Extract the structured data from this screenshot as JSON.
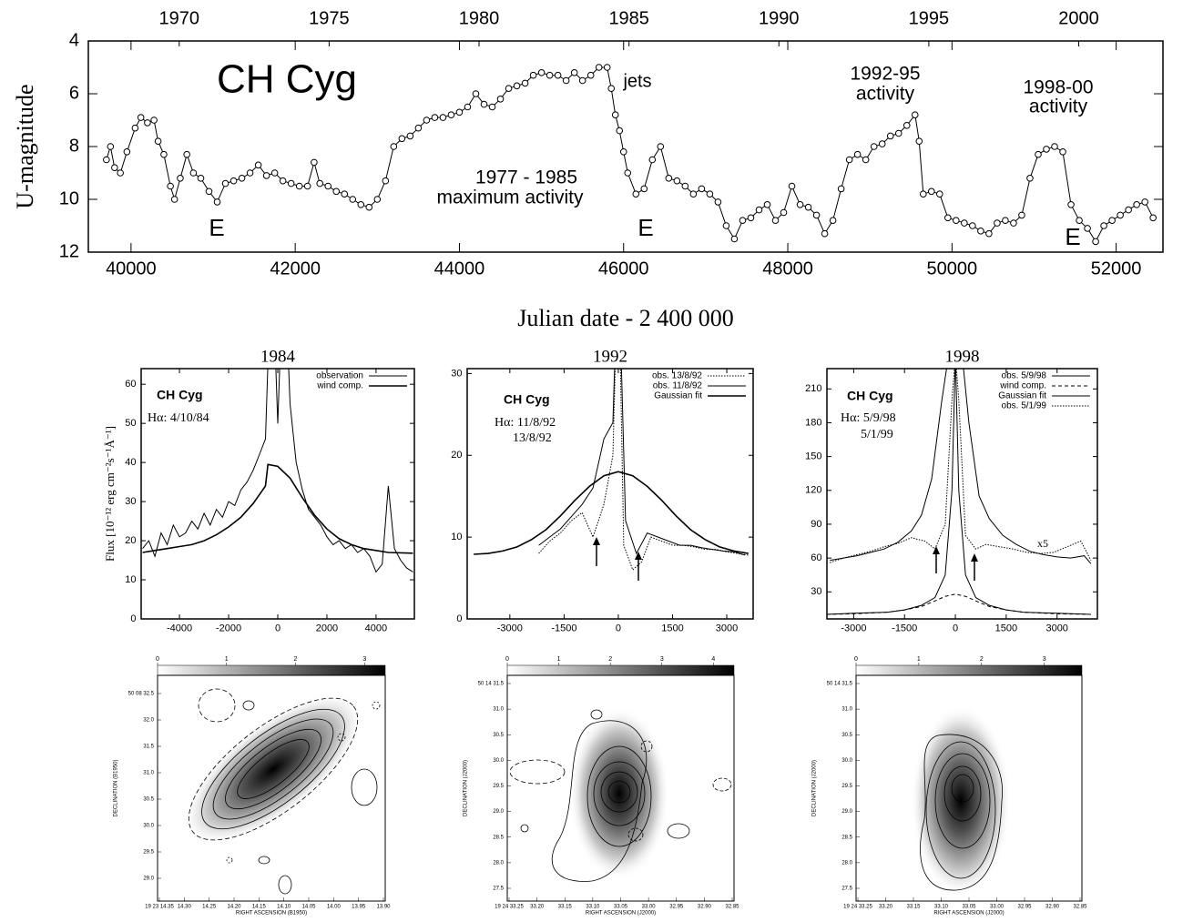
{
  "chart_data": [
    {
      "type": "scatter",
      "xlabel": "Julian date - 2 400 000",
      "ylabel": "U-magnitude",
      "color": "#000000",
      "annotations": [
        "CH Cyg",
        "jets",
        "1992-95",
        "activity",
        "1998-00",
        "activity",
        "1977 - 1985",
        "maximum  activity",
        "E",
        "E",
        "E"
      ],
      "xlim": [
        39480,
        52570
      ],
      "ylim": [
        12,
        4
      ],
      "xticks": [
        40000,
        42000,
        44000,
        46000,
        48000,
        50000,
        52000
      ],
      "yticks": [
        4,
        6,
        8,
        10,
        12
      ],
      "x2ticks": [
        {
          "value": 40587,
          "label": "1970"
        },
        {
          "value": 42413,
          "label": "1975"
        },
        {
          "value": 44239,
          "label": "1980"
        },
        {
          "value": 46066,
          "label": "1985"
        },
        {
          "value": 47892,
          "label": "1990"
        },
        {
          "value": 49718,
          "label": "1995"
        },
        {
          "value": 51544,
          "label": "2000"
        }
      ],
      "x": [
        39700,
        39750,
        39800,
        39870,
        39950,
        40050,
        40120,
        40200,
        40280,
        40330,
        40400,
        40480,
        40530,
        40600,
        40680,
        40760,
        40850,
        40950,
        41050,
        41150,
        41250,
        41350,
        41450,
        41550,
        41650,
        41750,
        41850,
        41950,
        42050,
        42150,
        42230,
        42300,
        42400,
        42500,
        42600,
        42700,
        42800,
        42900,
        43000,
        43100,
        43200,
        43300,
        43400,
        43500,
        43600,
        43700,
        43800,
        43900,
        44000,
        44100,
        44200,
        44300,
        44400,
        44500,
        44600,
        44700,
        44800,
        44900,
        45000,
        45100,
        45200,
        45300,
        45400,
        45500,
        45600,
        45700,
        45800,
        45850,
        45900,
        45950,
        46000,
        46050,
        46150,
        46250,
        46350,
        46450,
        46550,
        46650,
        46750,
        46850,
        46950,
        47050,
        47150,
        47250,
        47350,
        47450,
        47550,
        47650,
        47750,
        47850,
        47950,
        48050,
        48150,
        48250,
        48350,
        48450,
        48550,
        48650,
        48750,
        48850,
        48950,
        49050,
        49150,
        49250,
        49350,
        49450,
        49550,
        49600,
        49650,
        49750,
        49850,
        49950,
        50050,
        50150,
        50250,
        50350,
        50450,
        50550,
        50650,
        50750,
        50850,
        50950,
        51050,
        51150,
        51250,
        51350,
        51450,
        51550,
        51650,
        51750,
        51850,
        51950,
        52050,
        52150,
        52250,
        52350,
        52450
      ],
      "values": [
        8.5,
        8.0,
        8.8,
        9.0,
        8.2,
        7.3,
        6.9,
        7.1,
        7.0,
        7.8,
        8.3,
        9.5,
        10.0,
        9.2,
        8.3,
        9.0,
        9.2,
        9.7,
        10.1,
        9.4,
        9.3,
        9.2,
        9.0,
        8.7,
        9.1,
        9.0,
        9.3,
        9.4,
        9.5,
        9.5,
        8.6,
        9.4,
        9.5,
        9.7,
        9.8,
        10.0,
        10.2,
        10.3,
        10.0,
        9.3,
        8.0,
        7.7,
        7.6,
        7.3,
        7.0,
        6.9,
        6.9,
        6.8,
        6.7,
        6.5,
        6.0,
        6.4,
        6.5,
        6.2,
        5.8,
        5.7,
        5.6,
        5.3,
        5.2,
        5.3,
        5.3,
        5.5,
        5.2,
        5.5,
        5.3,
        5.0,
        5.0,
        5.8,
        6.8,
        7.4,
        8.2,
        9.0,
        9.8,
        9.6,
        8.5,
        8.0,
        9.2,
        9.3,
        9.5,
        9.8,
        9.6,
        9.8,
        10.1,
        11.0,
        11.5,
        10.8,
        10.7,
        10.4,
        10.2,
        10.8,
        10.5,
        9.5,
        10.2,
        10.3,
        10.6,
        11.3,
        10.8,
        9.6,
        8.5,
        8.3,
        8.5,
        8.0,
        7.9,
        7.6,
        7.5,
        7.2,
        6.8,
        7.8,
        9.8,
        9.7,
        9.8,
        10.7,
        10.8,
        10.9,
        11.0,
        11.2,
        11.3,
        10.9,
        10.8,
        10.9,
        10.6,
        9.2,
        8.3,
        8.1,
        8.0,
        8.2,
        10.2,
        10.8,
        11.1,
        11.6,
        11.0,
        10.8,
        10.6,
        10.4,
        10.2,
        10.1,
        10.7
      ]
    },
    {
      "type": "line",
      "title": "1984",
      "ylabel": "Flux [10⁻¹² erg cm⁻²s⁻¹Å⁻¹]",
      "annotations": [
        "CH Cyg",
        "Hα: 4/10/84"
      ],
      "xlim": [
        -5560,
        5560
      ],
      "ylim": [
        0,
        64
      ],
      "xticks": [
        -4000,
        -2000,
        0,
        2000,
        4000
      ],
      "yticks": [
        0,
        10,
        20,
        30,
        40,
        50,
        60
      ],
      "series": [
        {
          "name": "observation",
          "color": "#000000",
          "style": "solid",
          "x": [
            -5500,
            -5250,
            -5000,
            -4750,
            -4500,
            -4250,
            -4000,
            -3750,
            -3500,
            -3250,
            -3000,
            -2750,
            -2500,
            -2250,
            -2000,
            -1750,
            -1500,
            -1250,
            -1000,
            -750,
            -500,
            -250,
            0,
            250,
            500,
            750,
            1000,
            1250,
            1500,
            1750,
            2000,
            2250,
            2500,
            2750,
            3000,
            3250,
            3500,
            3750,
            4000,
            4250,
            4500,
            4750,
            5000,
            5250,
            5500
          ],
          "values": [
            18,
            20,
            16,
            22,
            19,
            24,
            21,
            22,
            25,
            23,
            27,
            24,
            28,
            26,
            30,
            29,
            33,
            35,
            38,
            42,
            46,
            95,
            50,
            95,
            55,
            40,
            33,
            28,
            26,
            24,
            21,
            19,
            20,
            18,
            19,
            17,
            18,
            16,
            12,
            14,
            34,
            18,
            15,
            13,
            12
          ]
        },
        {
          "name": "wind comp.",
          "color": "#000000",
          "style": "thick",
          "x": [
            -5500,
            -5000,
            -4500,
            -4000,
            -3500,
            -3000,
            -2500,
            -2000,
            -1500,
            -1000,
            -500,
            -400,
            0,
            500,
            1000,
            1500,
            2000,
            2500,
            3000,
            3500,
            4000,
            4500,
            5500
          ],
          "values": [
            17,
            17.5,
            18,
            18.5,
            19,
            20,
            21.5,
            23.5,
            26,
            29.5,
            34,
            39.5,
            39,
            36,
            31,
            26.5,
            23,
            20.5,
            19,
            18,
            17.5,
            17,
            16.8
          ]
        }
      ]
    },
    {
      "type": "line",
      "title": "1992",
      "annotations": [
        "CH Cyg",
        "Hα: 11/8/92",
        "13/8/92"
      ],
      "xlim": [
        -4180,
        3730
      ],
      "ylim": [
        0,
        30.6
      ],
      "xticks": [
        -3000,
        -1500,
        0,
        1500,
        3000
      ],
      "yticks": [
        0,
        10,
        20,
        30
      ],
      "series": [
        {
          "name": "obs. 13/8/92",
          "color": "#000000",
          "style": "dotted",
          "x": [
            -2200,
            -1900,
            -1600,
            -1300,
            -1000,
            -700,
            -400,
            -150,
            0,
            150,
            400,
            650,
            900,
            1200,
            1500,
            1800,
            2100,
            2400,
            2700,
            3000,
            3300,
            3600
          ],
          "values": [
            8,
            9.5,
            10.5,
            12,
            13,
            10,
            14,
            20,
            45,
            9,
            6,
            7,
            10,
            9.5,
            9,
            9,
            8.8,
            8.5,
            8.5,
            8.2,
            8,
            7.8
          ]
        },
        {
          "name": "obs. 11/8/92",
          "color": "#000000",
          "style": "solid",
          "x": [
            -2200,
            -1900,
            -1600,
            -1300,
            -1000,
            -700,
            -400,
            -150,
            0,
            200,
            500,
            800,
            1100,
            1400,
            1700,
            2000,
            2300,
            2600,
            2900,
            3200,
            3500
          ],
          "values": [
            9,
            10,
            11,
            12.5,
            14,
            16,
            22,
            24,
            45,
            12,
            8,
            10.5,
            10,
            9.5,
            9,
            9,
            8.7,
            8.5,
            8.3,
            8.2,
            7.8
          ]
        },
        {
          "name": "Gaussian fit",
          "color": "#000000",
          "style": "thick",
          "x": [
            -4000,
            -3600,
            -3200,
            -2800,
            -2400,
            -2000,
            -1600,
            -1200,
            -800,
            -400,
            0,
            400,
            800,
            1200,
            1600,
            2000,
            2400,
            2800,
            3200,
            3600
          ],
          "values": [
            7.9,
            8.0,
            8.3,
            8.8,
            9.7,
            10.9,
            12.6,
            14.5,
            16.2,
            17.5,
            18,
            17.5,
            16.2,
            14.5,
            12.6,
            10.9,
            9.7,
            8.8,
            8.3,
            8.0
          ]
        }
      ]
    },
    {
      "type": "line",
      "title": "1998",
      "annotations": [
        "CH Cyg",
        "Hα: 5/9/98",
        "5/1/99",
        "x5"
      ],
      "xlim": [
        -3790,
        4190
      ],
      "ylim": [
        6,
        228
      ],
      "xticks": [
        -3000,
        -1500,
        0,
        1500,
        3000
      ],
      "yticks": [
        30,
        60,
        90,
        120,
        150,
        180,
        210
      ],
      "series": [
        {
          "name": "obs. 5/9/98",
          "color": "#000000",
          "style": "solid",
          "x": [
            -3700,
            -3300,
            -2900,
            -2500,
            -2100,
            -1700,
            -1300,
            -1000,
            -700,
            -400,
            -200,
            0,
            200,
            400,
            700,
            1000,
            1400,
            1800,
            2200,
            2600,
            3000,
            3400,
            3800,
            4000
          ],
          "values": [
            58,
            60,
            62,
            65,
            68,
            74,
            84,
            98,
            130,
            200,
            240,
            240,
            240,
            180,
            115,
            95,
            80,
            72,
            66,
            63,
            61,
            60,
            62,
            55
          ]
        },
        {
          "name": "wind comp.",
          "color": "#000000",
          "style": "dashed",
          "x": [
            -3800,
            -3000,
            -2000,
            -1500,
            -1000,
            -600,
            -300,
            0,
            300,
            600,
            1000,
            1500,
            2000,
            3000,
            4000
          ],
          "values": [
            10,
            10.5,
            12,
            14,
            17,
            22,
            26,
            28,
            26,
            22,
            17,
            14,
            12,
            10.5,
            10
          ]
        },
        {
          "name": "Gaussian fit",
          "color": "#000000",
          "style": "solid",
          "x": [
            -3800,
            -3000,
            -2000,
            -1500,
            -1000,
            -600,
            -300,
            -100,
            0,
            100,
            300,
            600,
            1000,
            1500,
            2000,
            3000,
            4000
          ],
          "values": [
            10,
            11,
            12,
            14,
            18,
            25,
            45,
            120,
            240,
            120,
            45,
            25,
            18,
            14,
            12,
            11,
            10
          ]
        },
        {
          "name": "obs. 5/1/99",
          "color": "#000000",
          "style": "dotted",
          "x": [
            -3700,
            -3300,
            -2900,
            -2500,
            -2100,
            -1700,
            -1300,
            -900,
            -600,
            -300,
            -100,
            0,
            100,
            300,
            600,
            900,
            1300,
            1700,
            2100,
            2500,
            2900,
            3300,
            3700,
            4000
          ],
          "values": [
            56,
            60,
            63,
            66,
            70,
            73,
            78,
            75,
            68,
            90,
            200,
            240,
            200,
            80,
            68,
            72,
            70,
            68,
            65,
            64,
            65,
            70,
            75,
            58
          ]
        }
      ]
    },
    {
      "type": "image",
      "xlabel": "RIGHT ASCENSION (B1950)",
      "ylabel": "DECLINATION (B1950)",
      "colorbar_lim": [
        0,
        3.3
      ],
      "colorbar_ticks": [
        0,
        1,
        2,
        3
      ],
      "xticklabels": [
        "19 23 14.35",
        "14.30",
        "14.25",
        "14.20",
        "14.15",
        "14.10",
        "14.05",
        "14.00",
        "13.95",
        "13.90"
      ],
      "yticklabels": [
        "50 08 32.5",
        "32.0",
        "31.5",
        "31.0",
        "30.5",
        "30.0",
        "29.5",
        "29.0"
      ]
    },
    {
      "type": "image",
      "xlabel": "RIGHT ASCENSION (J2000)",
      "ylabel": "DECLINATION (J2000)",
      "colorbar_lim": [
        0,
        4.4
      ],
      "colorbar_ticks": [
        0,
        1,
        2,
        3,
        4
      ],
      "xticklabels": [
        "19 24 33.25",
        "33.20",
        "33.15",
        "33.10",
        "33.05",
        "33.00",
        "32.95",
        "32.90",
        "32.85"
      ],
      "yticklabels": [
        "50 14 31.5",
        "31.0",
        "30.5",
        "30.0",
        "29.5",
        "29.0",
        "28.5",
        "28.0",
        "27.5"
      ]
    },
    {
      "type": "image",
      "xlabel": "RIGHT ASCENSION (J2000)",
      "ylabel": "DECLINATION (J2000)",
      "colorbar_lim": [
        0,
        3.6
      ],
      "colorbar_ticks": [
        0,
        1,
        2,
        3
      ],
      "xticklabels": [
        "19 24 33.25",
        "33.20",
        "33.15",
        "33.10",
        "33.05",
        "33.00",
        "32.95",
        "32.90",
        "32.85"
      ],
      "yticklabels": [
        "50 14 31.5",
        "31.0",
        "30.5",
        "30.0",
        "29.5",
        "29.0",
        "28.5",
        "28.0",
        "27.5"
      ]
    }
  ]
}
